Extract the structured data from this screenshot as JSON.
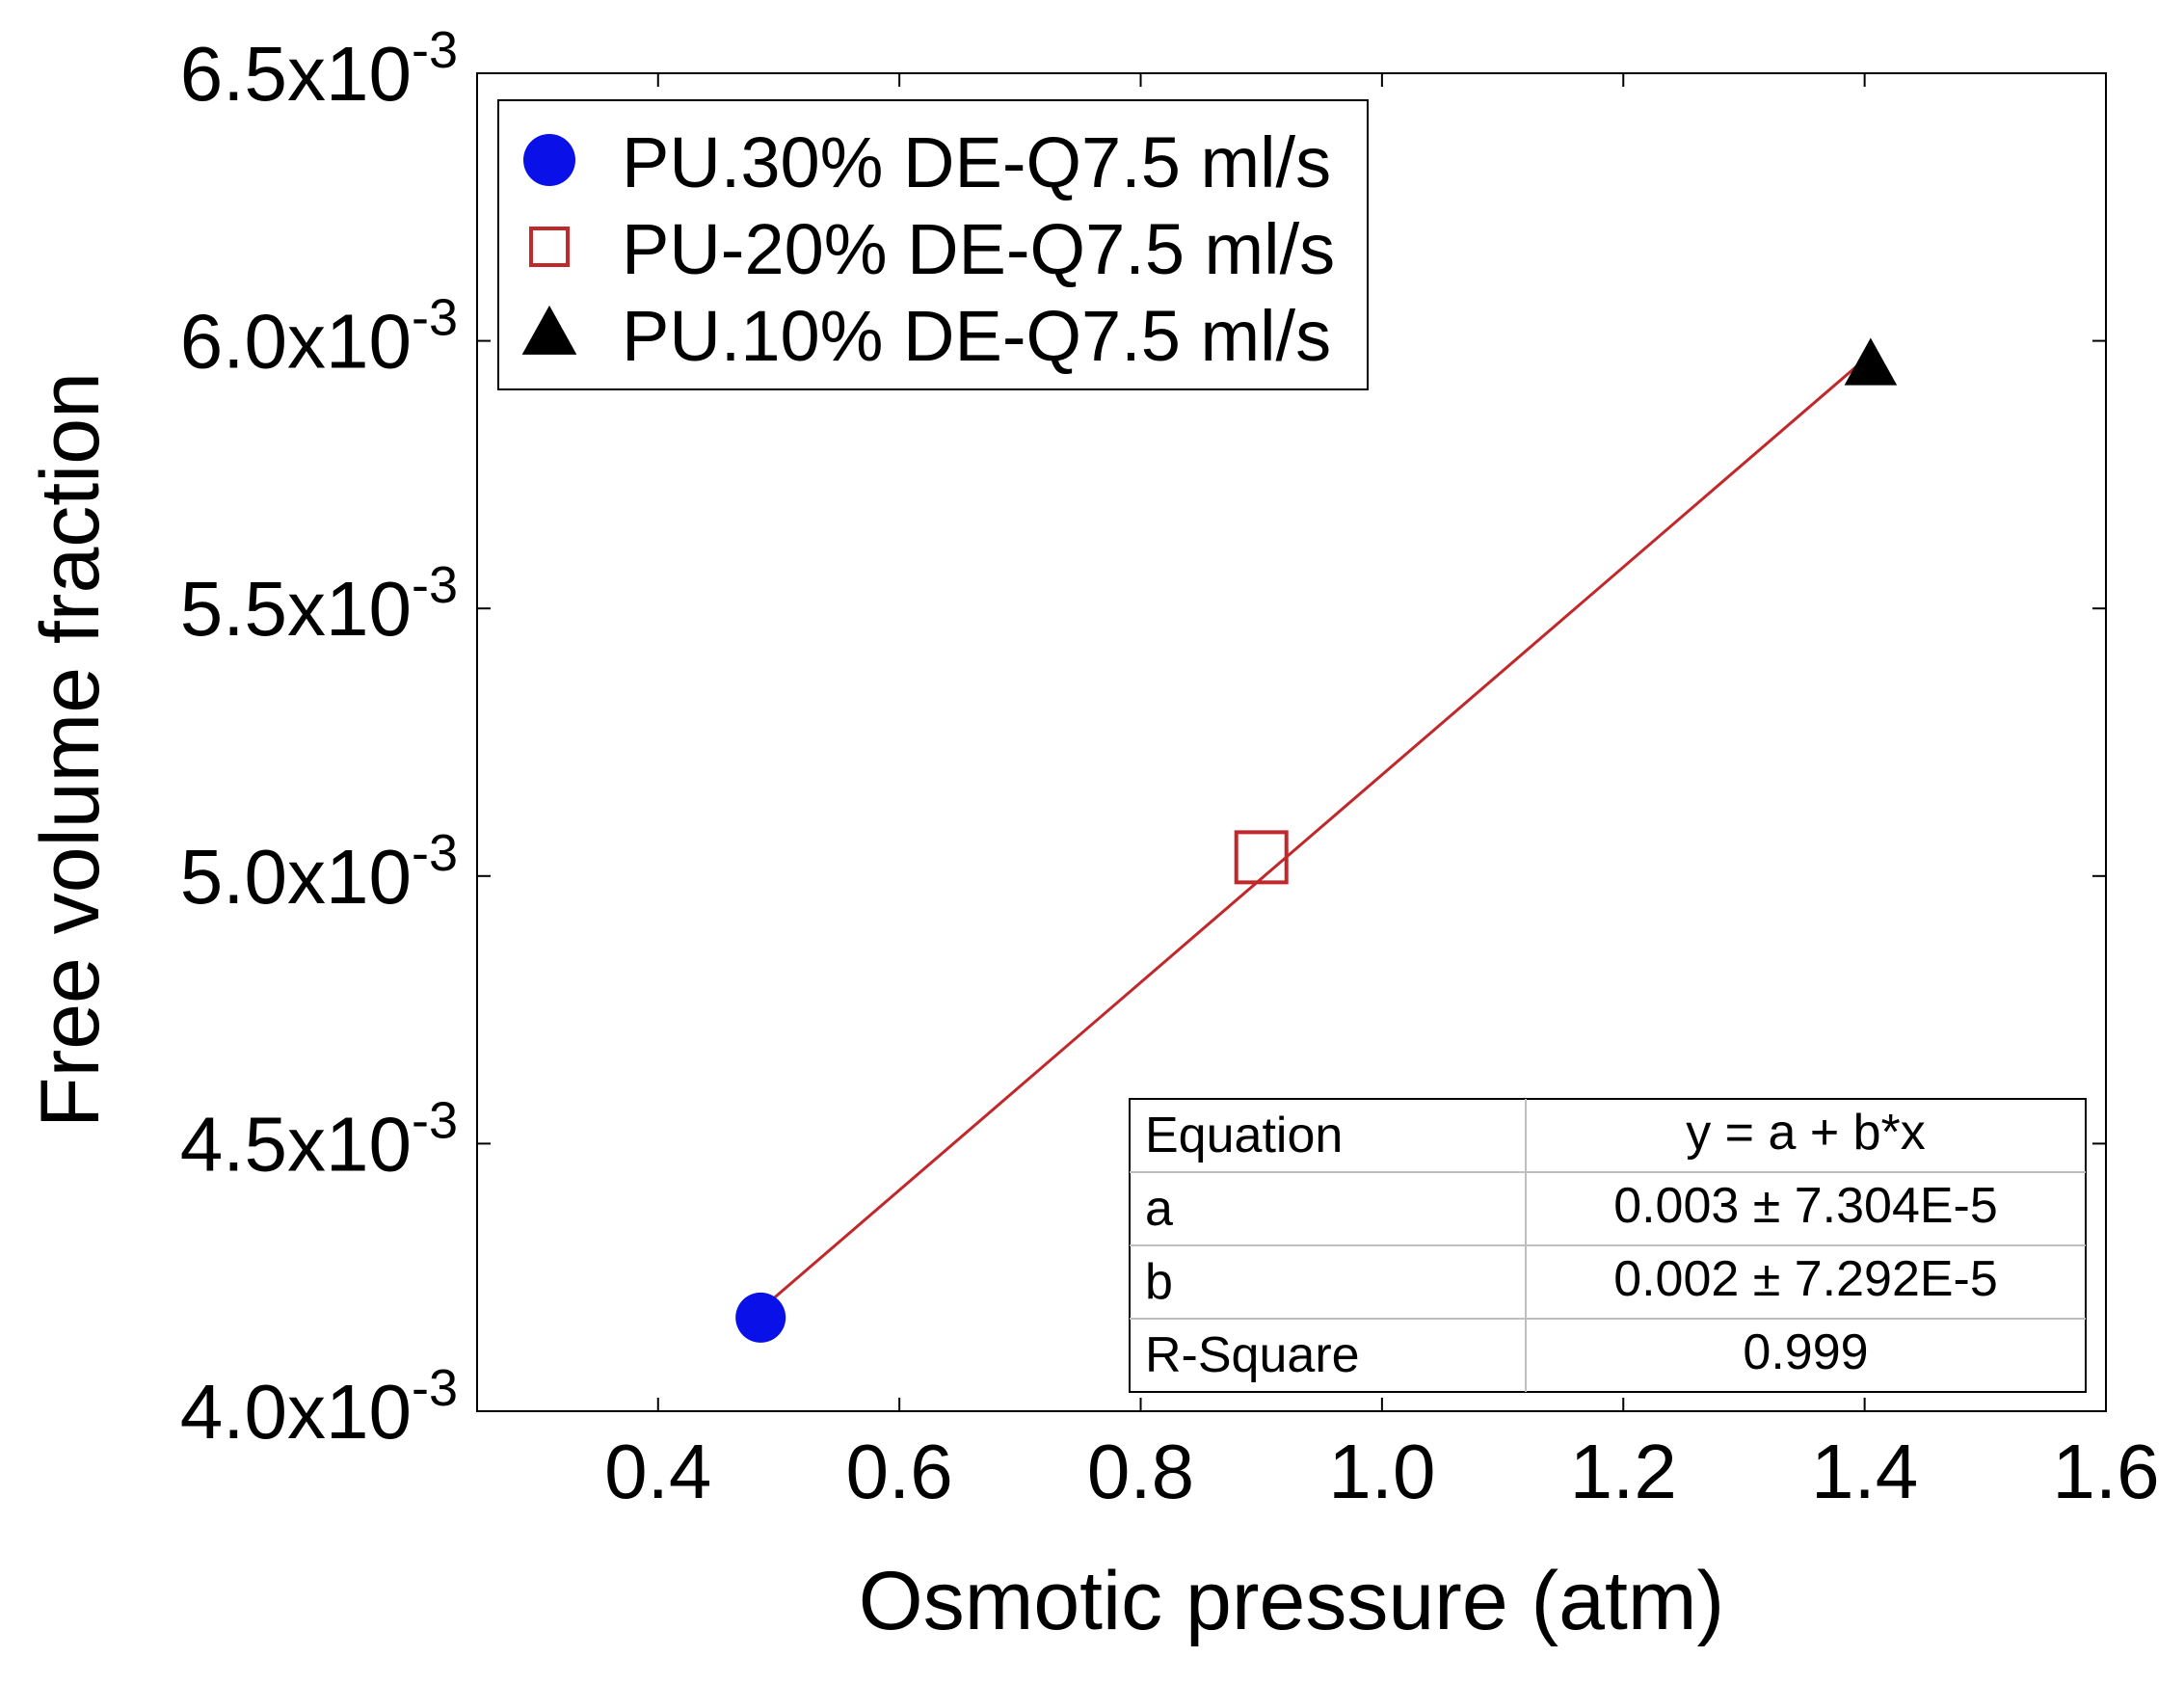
{
  "chart_data": {
    "type": "scatter",
    "title": "",
    "xlabel": "Osmotic pressure (atm)",
    "ylabel": "Free volume fraction",
    "xlim": [
      0.25,
      1.6
    ],
    "ylim": [
      0.004,
      0.0065
    ],
    "x_ticks": [
      {
        "value": 0.4,
        "label": "0.4"
      },
      {
        "value": 0.6,
        "label": "0.6"
      },
      {
        "value": 0.8,
        "label": "0.8"
      },
      {
        "value": 1.0,
        "label": "1.0"
      },
      {
        "value": 1.2,
        "label": "1.2"
      },
      {
        "value": 1.4,
        "label": "1.4"
      },
      {
        "value": 1.6,
        "label": "1.6"
      }
    ],
    "y_ticks": [
      {
        "value": 0.004,
        "mantissa": "4.0x10",
        "exponent": "-3"
      },
      {
        "value": 0.0045,
        "mantissa": "4.5x10",
        "exponent": "-3"
      },
      {
        "value": 0.005,
        "mantissa": "5.0x10",
        "exponent": "-3"
      },
      {
        "value": 0.0055,
        "mantissa": "5.5x10",
        "exponent": "-3"
      },
      {
        "value": 0.006,
        "mantissa": "6.0x10",
        "exponent": "-3"
      },
      {
        "value": 0.0065,
        "mantissa": "6.5x10",
        "exponent": "-3"
      }
    ],
    "legend_position": "top-left",
    "series": [
      {
        "name": "PU.30% DE-Q7.5 ml/s",
        "marker": "filled-circle",
        "color": "#0a10e8",
        "x": [
          0.485
        ],
        "y": [
          0.004175
        ]
      },
      {
        "name": "PU-20% DE-Q7.5 ml/s",
        "marker": "open-square",
        "color": "#c0282b",
        "x": [
          0.9
        ],
        "y": [
          0.005035
        ]
      },
      {
        "name": "PU.10% DE-Q7.5 ml/s",
        "marker": "filled-triangle",
        "color": "#000000",
        "x": [
          1.405
        ],
        "y": [
          0.005955
        ]
      }
    ],
    "fit_line": {
      "color": "#c0282b",
      "x": [
        0.485,
        1.405
      ],
      "y": [
        0.00419,
        0.005975
      ]
    },
    "fit_table": {
      "rows": [
        {
          "label": "Equation",
          "value": "y = a + b*x"
        },
        {
          "label": "a",
          "value": "0.003 ± 7.304E-5"
        },
        {
          "label": "b",
          "value": "0.002 ± 7.292E-5"
        },
        {
          "label": "R-Square",
          "value": "0.999"
        }
      ],
      "position": "bottom-right"
    }
  }
}
